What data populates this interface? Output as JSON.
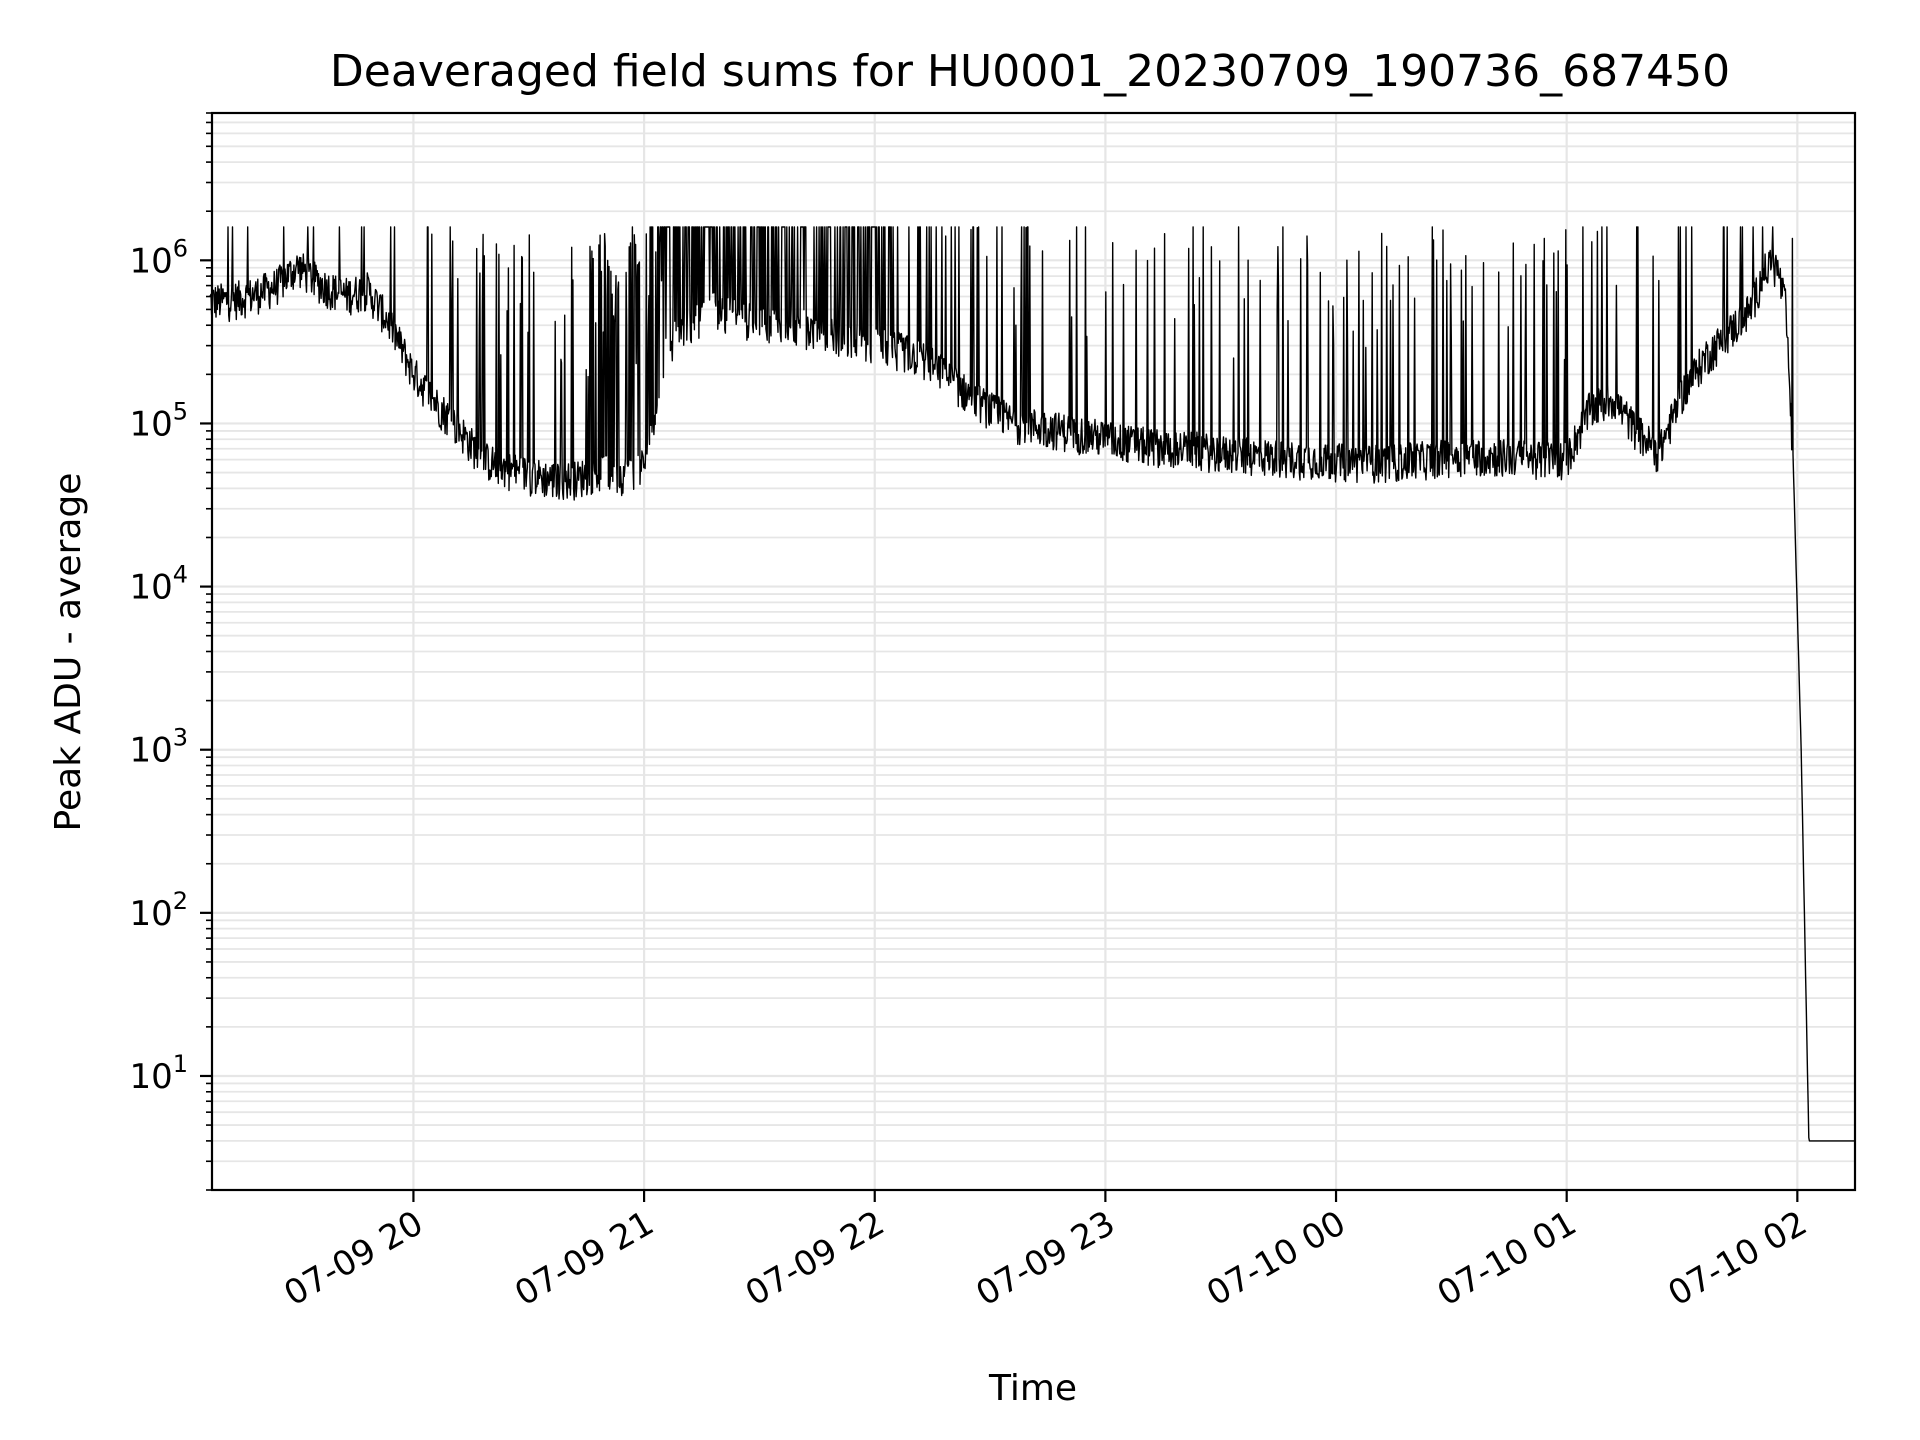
{
  "chart_data": {
    "type": "line",
    "title": "Deaveraged field sums for HU0001_20230709_190736_687450",
    "xlabel": "Time",
    "ylabel": "Peak ADU - average",
    "yscale": "log",
    "ylim": [
      2,
      8000000
    ],
    "xlim": [
      "2023-07-09 19:07:36",
      "2023-07-10 02:15:00"
    ],
    "grid": true,
    "legend": "none",
    "x_ticks": [
      {
        "label": "07-09 20",
        "value": "2023-07-09 20:00"
      },
      {
        "label": "07-09 21",
        "value": "2023-07-09 21:00"
      },
      {
        "label": "07-09 22",
        "value": "2023-07-09 22:00"
      },
      {
        "label": "07-09 23",
        "value": "2023-07-09 23:00"
      },
      {
        "label": "07-10 00",
        "value": "2023-07-10 00:00"
      },
      {
        "label": "07-10 01",
        "value": "2023-07-10 01:00"
      },
      {
        "label": "07-10 02",
        "value": "2023-07-10 02:00"
      }
    ],
    "y_ticks": [
      {
        "base": "10",
        "exp": "1",
        "value": 10
      },
      {
        "base": "10",
        "exp": "2",
        "value": 100
      },
      {
        "base": "10",
        "exp": "3",
        "value": 1000
      },
      {
        "base": "10",
        "exp": "4",
        "value": 10000
      },
      {
        "base": "10",
        "exp": "5",
        "value": 100000
      },
      {
        "base": "10",
        "exp": "6",
        "value": 1000000
      }
    ],
    "series": [
      {
        "color": "#000000",
        "x": [
          "2023-07-09 19:07",
          "2023-07-09 19:12",
          "2023-07-09 19:18",
          "2023-07-09 19:24",
          "2023-07-09 19:30",
          "2023-07-09 19:36",
          "2023-07-09 19:42",
          "2023-07-09 19:48",
          "2023-07-09 19:54",
          "2023-07-09 20:00",
          "2023-07-09 20:06",
          "2023-07-09 20:12",
          "2023-07-09 20:18",
          "2023-07-09 20:24",
          "2023-07-09 20:30",
          "2023-07-09 20:36",
          "2023-07-09 20:42",
          "2023-07-09 20:48",
          "2023-07-09 20:54",
          "2023-07-09 21:00",
          "2023-07-09 21:06",
          "2023-07-09 21:12",
          "2023-07-09 21:18",
          "2023-07-09 21:24",
          "2023-07-09 21:30",
          "2023-07-09 21:36",
          "2023-07-09 21:42",
          "2023-07-09 21:48",
          "2023-07-09 21:54",
          "2023-07-09 22:00",
          "2023-07-09 22:06",
          "2023-07-09 22:12",
          "2023-07-09 22:18",
          "2023-07-09 22:24",
          "2023-07-09 22:30",
          "2023-07-09 22:36",
          "2023-07-09 22:42",
          "2023-07-09 22:48",
          "2023-07-09 22:54",
          "2023-07-09 23:00",
          "2023-07-09 23:06",
          "2023-07-09 23:12",
          "2023-07-09 23:18",
          "2023-07-09 23:24",
          "2023-07-09 23:30",
          "2023-07-09 23:36",
          "2023-07-09 23:42",
          "2023-07-09 23:48",
          "2023-07-09 23:54",
          "2023-07-10 00:00",
          "2023-07-10 00:06",
          "2023-07-10 00:12",
          "2023-07-10 00:18",
          "2023-07-10 00:24",
          "2023-07-10 00:30",
          "2023-07-10 00:36",
          "2023-07-10 00:42",
          "2023-07-10 00:48",
          "2023-07-10 00:54",
          "2023-07-10 01:00",
          "2023-07-10 01:06",
          "2023-07-10 01:12",
          "2023-07-10 01:18",
          "2023-07-10 01:24",
          "2023-07-10 01:30",
          "2023-07-10 01:36",
          "2023-07-10 01:42",
          "2023-07-10 01:48",
          "2023-07-10 01:51",
          "2023-07-10 01:53",
          "2023-07-10 01:55",
          "2023-07-10 01:57",
          "2023-07-10 01:59",
          "2023-07-10 02:01",
          "2023-07-10 02:03",
          "2023-07-10 02:08",
          "2023-07-10 02:15"
        ],
        "y": [
          550000,
          560000,
          600000,
          680000,
          900000,
          700000,
          600000,
          650000,
          400000,
          200000,
          130000,
          90000,
          60000,
          52000,
          48000,
          45000,
          45000,
          50000,
          48000,
          55000,
          300000,
          400000,
          500000,
          450000,
          400000,
          420000,
          380000,
          350000,
          330000,
          300000,
          280000,
          250000,
          200000,
          150000,
          120000,
          100000,
          95000,
          90000,
          85000,
          80000,
          75000,
          72000,
          70000,
          68000,
          65000,
          63000,
          62000,
          60000,
          60000,
          58000,
          57000,
          57000,
          58000,
          60000,
          62000,
          63000,
          62000,
          61000,
          60000,
          60000,
          120000,
          140000,
          90000,
          65000,
          150000,
          250000,
          350000,
          500000,
          800000,
          950000,
          850000,
          500000,
          50000,
          1000,
          4,
          4,
          4
        ]
      }
    ]
  }
}
